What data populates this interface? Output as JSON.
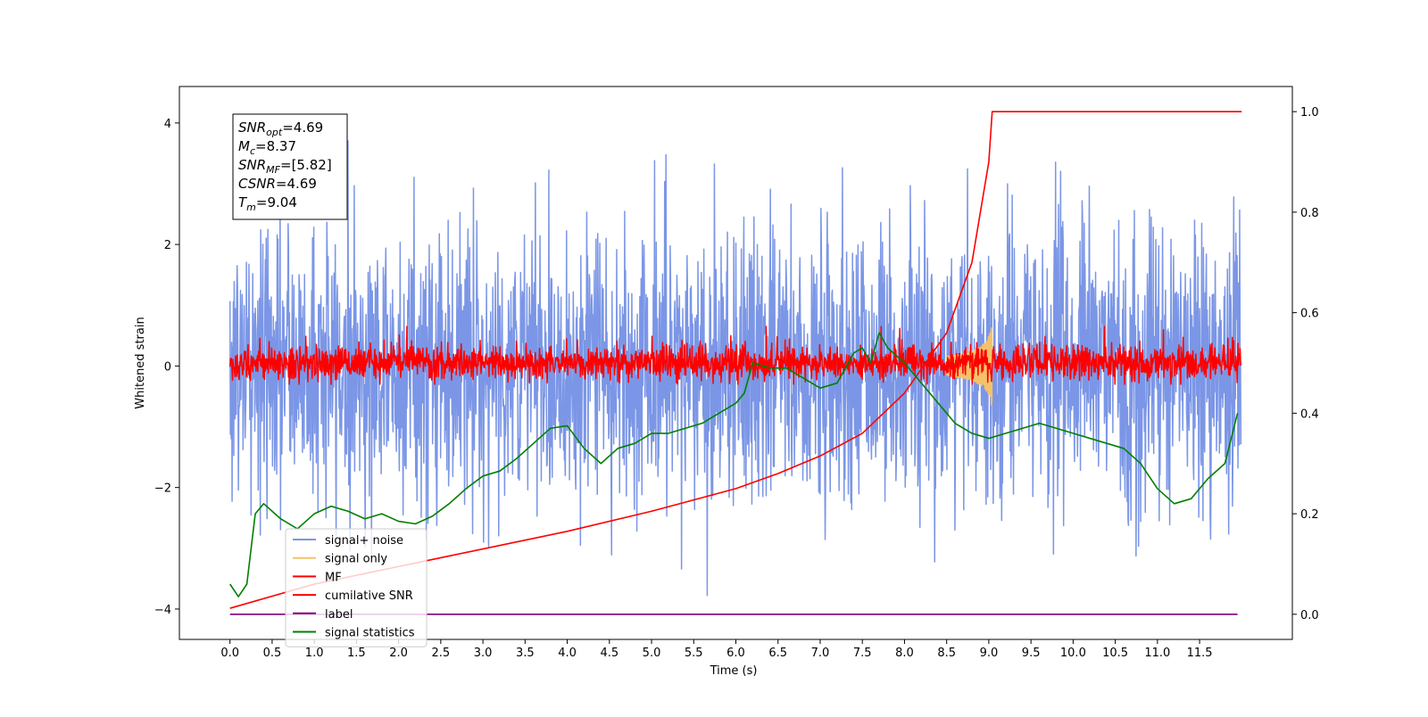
{
  "chart_data": {
    "type": "line",
    "xlabel": "Time (s)",
    "ylabel": "Whitened strain",
    "xlim": [
      -0.6,
      12.6
    ],
    "ylim_left": [
      -4.5,
      4.6
    ],
    "ylim_right": [
      -0.05,
      1.05
    ],
    "x_ticks": [
      0.0,
      0.5,
      1.0,
      1.5,
      2.0,
      2.5,
      3.0,
      3.5,
      4.0,
      4.5,
      5.0,
      5.5,
      6.0,
      6.5,
      7.0,
      7.5,
      8.0,
      8.5,
      9.0,
      9.5,
      10.0,
      10.5,
      11.0,
      11.5
    ],
    "x_tick_labels": [
      "0.0",
      "0.5",
      "1.0",
      "1.5",
      "2.0",
      "2.5",
      "3.0",
      "3.5",
      "4.0",
      "4.5",
      "5.0",
      "5.5",
      "6.0",
      "6.5",
      "7.0",
      "7.5",
      "8.0",
      "8.5",
      "9.0",
      "9.5",
      "10.0",
      "10.5",
      "11.0",
      "11.5"
    ],
    "y_ticks_left": [
      -4,
      -2,
      0,
      2,
      4
    ],
    "y_tick_labels_left": [
      "−4",
      "−2",
      "0",
      "2",
      "4"
    ],
    "y_ticks_right": [
      0.0,
      0.2,
      0.4,
      0.6,
      0.8,
      1.0
    ],
    "y_tick_labels_right": [
      "0.0",
      "0.2",
      "0.4",
      "0.6",
      "0.8",
      "1.0"
    ],
    "annotation": {
      "lines": [
        {
          "sym": "SNR",
          "sub": "opt",
          "val": "=4.69"
        },
        {
          "sym": "M",
          "sub": "c",
          "val": "=8.37"
        },
        {
          "sym": "SNR",
          "sub": "MF",
          "val": "=[5.82]"
        },
        {
          "sym": "CSNR",
          "sub": "",
          "val": "=4.69"
        },
        {
          "sym": "T",
          "sub": "m",
          "val": "=9.04"
        }
      ]
    },
    "legend_placement": "lower-left",
    "series": [
      {
        "name": "signal+ noise",
        "color": "#7b96e6",
        "axis": "left",
        "kind": "noise",
        "x_range": [
          0.0,
          11.99
        ],
        "amplitude_range": [
          -4.1,
          4.2
        ]
      },
      {
        "name": "signal only",
        "color": "#f5c26b",
        "axis": "left",
        "kind": "chirp",
        "x_range": [
          8.5,
          9.04
        ],
        "amplitude_range": [
          -0.75,
          0.65
        ]
      },
      {
        "name": "MF",
        "color": "#ff0000",
        "axis": "left",
        "kind": "noise",
        "x_range": [
          0.0,
          11.99
        ],
        "amplitude_range": [
          -0.3,
          0.65
        ]
      },
      {
        "name": "cumilative SNR",
        "color": "#ff0000",
        "axis": "right",
        "x": [
          0.0,
          1.0,
          2.0,
          3.0,
          4.0,
          5.0,
          6.0,
          6.5,
          7.0,
          7.5,
          8.0,
          8.5,
          8.8,
          9.0,
          9.04,
          12.0
        ],
        "y": [
          0.012,
          0.06,
          0.095,
          0.13,
          0.165,
          0.205,
          0.25,
          0.28,
          0.315,
          0.36,
          0.44,
          0.56,
          0.7,
          0.9,
          1.0,
          1.0
        ]
      },
      {
        "name": "label",
        "color": "#800080",
        "axis": "right",
        "x": [
          0.0,
          11.95
        ],
        "y": [
          0.0,
          0.0
        ]
      },
      {
        "name": "signal statistics",
        "color": "#008000",
        "axis": "right",
        "x": [
          0.0,
          0.1,
          0.2,
          0.3,
          0.4,
          0.5,
          0.6,
          0.7,
          0.8,
          0.9,
          1.0,
          1.2,
          1.4,
          1.6,
          1.8,
          2.0,
          2.2,
          2.4,
          2.6,
          2.8,
          3.0,
          3.2,
          3.4,
          3.6,
          3.8,
          4.0,
          4.2,
          4.4,
          4.6,
          4.8,
          5.0,
          5.2,
          5.4,
          5.6,
          5.8,
          6.0,
          6.1,
          6.2,
          6.4,
          6.6,
          6.8,
          7.0,
          7.2,
          7.4,
          7.5,
          7.6,
          7.7,
          7.8,
          8.0,
          8.2,
          8.4,
          8.6,
          8.8,
          9.0,
          9.2,
          9.4,
          9.6,
          9.8,
          10.0,
          10.2,
          10.4,
          10.6,
          10.8,
          11.0,
          11.2,
          11.4,
          11.6,
          11.8,
          11.95
        ],
        "y": [
          0.06,
          0.035,
          0.06,
          0.2,
          0.22,
          0.205,
          0.19,
          0.18,
          0.17,
          0.185,
          0.2,
          0.215,
          0.205,
          0.19,
          0.2,
          0.185,
          0.18,
          0.195,
          0.22,
          0.25,
          0.275,
          0.285,
          0.31,
          0.34,
          0.37,
          0.375,
          0.33,
          0.3,
          0.33,
          0.34,
          0.36,
          0.36,
          0.37,
          0.38,
          0.4,
          0.42,
          0.44,
          0.5,
          0.49,
          0.49,
          0.47,
          0.45,
          0.46,
          0.52,
          0.53,
          0.5,
          0.56,
          0.53,
          0.5,
          0.46,
          0.42,
          0.38,
          0.36,
          0.35,
          0.36,
          0.37,
          0.38,
          0.37,
          0.36,
          0.35,
          0.34,
          0.33,
          0.3,
          0.25,
          0.22,
          0.23,
          0.27,
          0.3,
          0.4
        ]
      }
    ]
  }
}
